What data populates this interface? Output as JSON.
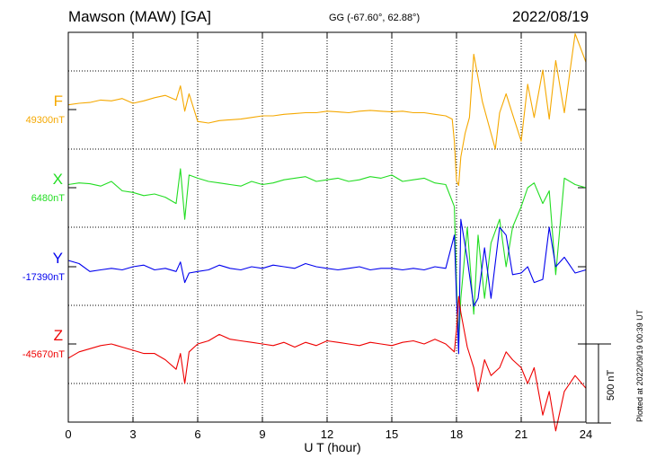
{
  "header": {
    "title": "Mawson (MAW)  [GA]",
    "coords": "GG (-67.60°,  62.88°)",
    "date": "2022/08/19"
  },
  "footer": {
    "xlabel": "U T (hour)",
    "plotted": "Plotted at 2022/09/19 00:39 UT",
    "scale_label": "500 nT"
  },
  "chart_data": {
    "type": "line",
    "xlabel": "U T (hour)",
    "xlim": [
      0,
      24
    ],
    "xticks": [
      0,
      3,
      6,
      9,
      12,
      15,
      18,
      21,
      24
    ],
    "grid": true,
    "scale_bar_nT": 500,
    "series": [
      {
        "name": "F",
        "baseline": "49300nT",
        "color": "#f5a800",
        "x": [
          0,
          0.5,
          1,
          1.5,
          2,
          2.5,
          3,
          3.5,
          4,
          4.5,
          5,
          5.2,
          5.4,
          5.6,
          6,
          6.5,
          7,
          7.5,
          8,
          8.5,
          9,
          9.5,
          10,
          10.5,
          11,
          11.5,
          12,
          12.5,
          13,
          13.5,
          14,
          14.5,
          15,
          15.5,
          16,
          16.5,
          17,
          17.5,
          17.8,
          17.9,
          18,
          18.1,
          18.2,
          18.4,
          18.6,
          18.8,
          19,
          19.2,
          19.5,
          19.8,
          20,
          20.3,
          20.6,
          21,
          21.3,
          21.6,
          22,
          22.3,
          22.6,
          23,
          23.5,
          24
        ],
        "y": [
          30,
          40,
          45,
          60,
          55,
          70,
          40,
          55,
          75,
          90,
          60,
          150,
          -10,
          100,
          -75,
          -85,
          -70,
          -65,
          -60,
          -50,
          -40,
          -40,
          -30,
          -25,
          -20,
          -20,
          -10,
          -15,
          -20,
          -10,
          -5,
          -10,
          -15,
          -10,
          -20,
          -20,
          -30,
          -40,
          -60,
          -200,
          -450,
          -480,
          -300,
          -150,
          -50,
          350,
          200,
          50,
          -100,
          -250,
          -20,
          100,
          -30,
          -200,
          160,
          -50,
          250,
          -60,
          310,
          -20,
          480,
          300
        ]
      },
      {
        "name": "X",
        "baseline": "6480nT",
        "color": "#22dd22",
        "x": [
          0,
          0.5,
          1,
          1.5,
          2,
          2.5,
          3,
          3.5,
          4,
          4.5,
          5,
          5.2,
          5.4,
          5.6,
          6,
          6.5,
          7,
          7.5,
          8,
          8.5,
          9,
          9.5,
          10,
          10.5,
          11,
          11.5,
          12,
          12.5,
          13,
          13.5,
          14,
          14.5,
          15,
          15.5,
          16,
          16.5,
          17,
          17.5,
          17.9,
          18,
          18.1,
          18.2,
          18.5,
          18.8,
          19,
          19.3,
          19.6,
          20,
          20.3,
          20.6,
          21,
          21.3,
          21.6,
          22,
          22.3,
          22.6,
          23,
          23.5,
          24
        ],
        "y": [
          20,
          30,
          25,
          10,
          40,
          -20,
          -30,
          -50,
          -40,
          -60,
          -100,
          120,
          -200,
          80,
          60,
          40,
          30,
          20,
          10,
          40,
          20,
          30,
          50,
          60,
          70,
          40,
          50,
          60,
          40,
          50,
          70,
          60,
          80,
          40,
          50,
          60,
          30,
          20,
          -120,
          -600,
          -1000,
          -700,
          -250,
          -800,
          -300,
          -700,
          -350,
          -200,
          -500,
          -250,
          -120,
          0,
          30,
          -100,
          -20,
          -550,
          60,
          20,
          0
        ]
      },
      {
        "name": "Y",
        "baseline": "-17390nT",
        "color": "#0000ee",
        "x": [
          0,
          0.5,
          1,
          1.5,
          2,
          2.5,
          3,
          3.5,
          4,
          4.5,
          5,
          5.2,
          5.4,
          5.6,
          6,
          6.5,
          7,
          7.5,
          8,
          8.5,
          9,
          9.5,
          10,
          10.5,
          11,
          11.5,
          12,
          12.5,
          13,
          13.5,
          14,
          14.5,
          15,
          15.5,
          16,
          16.5,
          17,
          17.5,
          17.9,
          18,
          18.1,
          18.2,
          18.5,
          18.8,
          19,
          19.3,
          19.6,
          20,
          20.3,
          20.6,
          21,
          21.3,
          21.6,
          22,
          22.3,
          22.6,
          23,
          23.5,
          24
        ],
        "y": [
          40,
          20,
          -30,
          -20,
          -10,
          -20,
          0,
          10,
          -20,
          -10,
          -30,
          30,
          -100,
          -40,
          -30,
          -20,
          10,
          -10,
          -20,
          0,
          -10,
          10,
          0,
          -10,
          20,
          0,
          -10,
          -20,
          -10,
          0,
          -20,
          -10,
          -10,
          -20,
          -10,
          -20,
          0,
          -10,
          200,
          -200,
          -550,
          300,
          50,
          -250,
          -200,
          120,
          -200,
          250,
          200,
          -50,
          -40,
          0,
          -100,
          -80,
          250,
          0,
          60,
          -40,
          -20
        ]
      },
      {
        "name": "Z",
        "baseline": "-45670nT",
        "color": "#ee0000",
        "x": [
          0,
          0.5,
          1,
          1.5,
          2,
          2.5,
          3,
          3.5,
          4,
          4.5,
          5,
          5.2,
          5.4,
          5.6,
          6,
          6.5,
          7,
          7.5,
          8,
          8.5,
          9,
          9.5,
          10,
          10.5,
          11,
          11.5,
          12,
          12.5,
          13,
          13.5,
          14,
          14.5,
          15,
          15.5,
          16,
          16.5,
          17,
          17.5,
          17.9,
          18,
          18.1,
          18.2,
          18.5,
          18.8,
          19,
          19.3,
          19.6,
          20,
          20.3,
          20.6,
          21,
          21.3,
          21.6,
          22,
          22.3,
          22.6,
          23,
          23.5,
          24
        ],
        "y": [
          -90,
          -50,
          -30,
          -10,
          0,
          -20,
          -40,
          -60,
          -60,
          -100,
          -160,
          -60,
          -250,
          -50,
          0,
          20,
          60,
          30,
          20,
          10,
          0,
          -10,
          10,
          -20,
          10,
          -10,
          20,
          10,
          0,
          -10,
          10,
          0,
          -10,
          10,
          20,
          0,
          30,
          0,
          -50,
          90,
          300,
          200,
          -20,
          -150,
          -300,
          -100,
          -200,
          -150,
          -50,
          -100,
          -150,
          -250,
          -150,
          -450,
          -300,
          -550,
          -300,
          -200,
          -280
        ]
      }
    ]
  }
}
